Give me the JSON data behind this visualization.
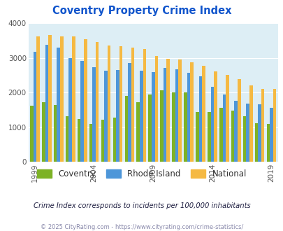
{
  "title": "Coventry Property Crime Index",
  "years": [
    1999,
    2000,
    2001,
    2002,
    2003,
    2004,
    2005,
    2006,
    2007,
    2008,
    2009,
    2010,
    2011,
    2012,
    2013,
    2014,
    2015,
    2016,
    2017,
    2018,
    2019,
    2020
  ],
  "coventry": [
    1620,
    1720,
    1640,
    1310,
    1230,
    1100,
    1210,
    1270,
    1890,
    1720,
    1940,
    2070,
    2000,
    1990,
    1430,
    1430,
    1560,
    1470,
    1310,
    1120,
    1100,
    0
  ],
  "rhode_island": [
    3180,
    3370,
    3290,
    3000,
    2900,
    2730,
    2620,
    2640,
    2850,
    2620,
    2590,
    2710,
    2670,
    2570,
    2470,
    2160,
    1940,
    1760,
    1670,
    1650,
    1550,
    0
  ],
  "national": [
    3620,
    3660,
    3620,
    3610,
    3530,
    3450,
    3350,
    3340,
    3290,
    3250,
    3060,
    2970,
    2950,
    2870,
    2770,
    2600,
    2510,
    2390,
    2200,
    2100,
    2100,
    0
  ],
  "coventry_color": "#7db226",
  "rhode_island_color": "#4d96d9",
  "national_color": "#f5b942",
  "bg_color": "#ddeef5",
  "title_color": "#1155cc",
  "subtitle_color": "#222244",
  "footer_color": "#8888aa",
  "ylim": [
    0,
    4000
  ],
  "tick_years": [
    1999,
    2004,
    2009,
    2014,
    2019
  ],
  "subtitle": "Crime Index corresponds to incidents per 100,000 inhabitants",
  "footer": "© 2025 CityRating.com - https://www.cityrating.com/crime-statistics/",
  "legend_labels": [
    "Coventry",
    "Rhode Island",
    "National"
  ]
}
